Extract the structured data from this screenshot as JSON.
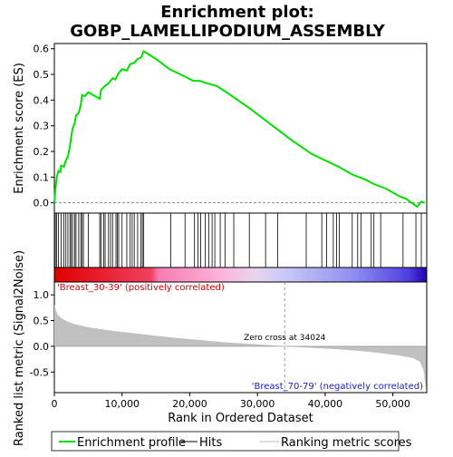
{
  "title_line1": "Enrichment plot:",
  "title_line2": "GOBP_LAMELLIPODIUM_ASSEMBLY",
  "chart_data": {
    "type": "line",
    "x_range": [
      0,
      55000
    ],
    "x_ticks": [
      0,
      10000,
      20000,
      30000,
      40000,
      50000
    ],
    "x_tick_labels": [
      "0",
      "10,000",
      "20,000",
      "30,000",
      "40,000",
      "50,000"
    ],
    "xlabel": "Rank in Ordered Dataset",
    "es_panel": {
      "ylabel": "Enrichment score (ES)",
      "ylim": [
        -0.04,
        0.62
      ],
      "y_ticks": [
        0.0,
        0.1,
        0.2,
        0.3,
        0.4,
        0.5,
        0.6
      ],
      "y_tick_labels": [
        "0.0",
        "0.1",
        "0.2",
        "0.3",
        "0.4",
        "0.5",
        "0.6"
      ],
      "line_color": "#00e000",
      "points": [
        [
          0,
          0.0
        ],
        [
          150,
          0.05
        ],
        [
          350,
          0.1
        ],
        [
          600,
          0.125
        ],
        [
          900,
          0.12
        ],
        [
          1000,
          0.145
        ],
        [
          1400,
          0.14
        ],
        [
          1700,
          0.165
        ],
        [
          2000,
          0.18
        ],
        [
          2300,
          0.22
        ],
        [
          2500,
          0.26
        ],
        [
          2700,
          0.29
        ],
        [
          3000,
          0.31
        ],
        [
          3200,
          0.34
        ],
        [
          3600,
          0.35
        ],
        [
          3900,
          0.38
        ],
        [
          4100,
          0.42
        ],
        [
          4500,
          0.415
        ],
        [
          5000,
          0.43
        ],
        [
          6700,
          0.405
        ],
        [
          6900,
          0.44
        ],
        [
          7500,
          0.455
        ],
        [
          8000,
          0.465
        ],
        [
          8600,
          0.485
        ],
        [
          9000,
          0.48
        ],
        [
          9500,
          0.505
        ],
        [
          10000,
          0.52
        ],
        [
          10700,
          0.515
        ],
        [
          11200,
          0.54
        ],
        [
          11800,
          0.545
        ],
        [
          12300,
          0.56
        ],
        [
          12800,
          0.565
        ],
        [
          13200,
          0.59
        ],
        [
          15000,
          0.56
        ],
        [
          17000,
          0.52
        ],
        [
          19000,
          0.495
        ],
        [
          20500,
          0.475
        ],
        [
          21500,
          0.475
        ],
        [
          22500,
          0.465
        ],
        [
          24000,
          0.455
        ],
        [
          26000,
          0.42
        ],
        [
          29000,
          0.365
        ],
        [
          32000,
          0.305
        ],
        [
          35000,
          0.245
        ],
        [
          38000,
          0.19
        ],
        [
          40000,
          0.165
        ],
        [
          42000,
          0.14
        ],
        [
          44000,
          0.11
        ],
        [
          46000,
          0.09
        ],
        [
          47000,
          0.075
        ],
        [
          49000,
          0.055
        ],
        [
          51000,
          0.025
        ],
        [
          52000,
          0.015
        ],
        [
          53000,
          -0.005
        ],
        [
          53600,
          -0.015
        ],
        [
          54200,
          0.005
        ],
        [
          54700,
          0.0
        ]
      ]
    },
    "hits": [
      150,
      350,
      600,
      1000,
      1400,
      1700,
      2000,
      2300,
      2500,
      2700,
      3000,
      3200,
      3600,
      3900,
      4100,
      4300,
      5000,
      6700,
      6900,
      7300,
      7500,
      8000,
      8300,
      8600,
      9100,
      9300,
      9500,
      10000,
      10700,
      11200,
      11500,
      11800,
      12300,
      12800,
      13000,
      13200,
      17200,
      19300,
      20700,
      21200,
      21600,
      22300,
      22800,
      23300,
      23700,
      24500,
      25200,
      26500,
      28800,
      31200,
      33000,
      37200,
      39500,
      40200,
      41200,
      41700,
      42100,
      44000,
      44800,
      45300,
      46800,
      47200,
      48200,
      51500,
      53400,
      54200
    ],
    "metric_panel": {
      "ylabel": "Ranked list metric (Signal2Noise)",
      "ylim": [
        -0.9,
        1.25
      ],
      "y_ticks": [
        -0.5,
        0.0,
        0.5,
        1.0
      ],
      "y_tick_labels": [
        "-0.5",
        "0.0",
        "0.5",
        "1.0"
      ],
      "fill_color": "#c0c0c0",
      "metric_points": [
        [
          0,
          0.82
        ],
        [
          200,
          0.7
        ],
        [
          500,
          0.62
        ],
        [
          1000,
          0.55
        ],
        [
          2000,
          0.48
        ],
        [
          3000,
          0.43
        ],
        [
          5000,
          0.37
        ],
        [
          8000,
          0.31
        ],
        [
          12000,
          0.25
        ],
        [
          16000,
          0.19
        ],
        [
          20000,
          0.14
        ],
        [
          25000,
          0.08
        ],
        [
          30000,
          0.04
        ],
        [
          34024,
          0.0
        ],
        [
          38000,
          -0.03
        ],
        [
          42000,
          -0.06
        ],
        [
          45000,
          -0.09
        ],
        [
          48000,
          -0.13
        ],
        [
          51000,
          -0.18
        ],
        [
          53000,
          -0.23
        ],
        [
          54000,
          -0.3
        ],
        [
          54500,
          -0.45
        ],
        [
          54900,
          -0.85
        ]
      ],
      "zero_cross_label": "Zero cross at 34024",
      "zero_cross_rank": 34024,
      "pos_label": "'Breast_30-39' (positively correlated)",
      "neg_label": "'Breast_70-79' (negatively correlated)"
    },
    "legend": {
      "placement": "bottom",
      "items": [
        {
          "label": "Enrichment profile",
          "color": "#00e000",
          "style": "line"
        },
        {
          "label": "Hits",
          "color": "#000000",
          "style": "line"
        },
        {
          "label": "Ranking metric scores",
          "color": "#c0c0c0",
          "style": "line"
        }
      ]
    }
  }
}
